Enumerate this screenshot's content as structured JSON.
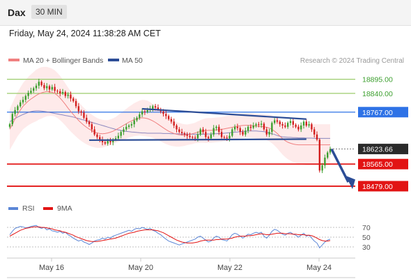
{
  "header": {
    "symbol": "Dax",
    "timeframe": "30 MIN",
    "datetime": "Friday, May 24, 2024 11:38:28 AM CET"
  },
  "legend": {
    "ma20": "MA 20 + Bollinger Bands",
    "ma50": "MA 50",
    "rsi": "RSI",
    "rsi_ma": "9MA"
  },
  "credit": "Research © 2024 Trading Central",
  "colors": {
    "up": "#3a9e2c",
    "down": "#d21d1d",
    "ma20": "#f08080",
    "ma50": "#6e6eb4",
    "band": "#fde3e3",
    "trend": "#2c4d96",
    "support": "#e21414",
    "resistance": "#9ccc6c",
    "pivot": "#2e72e6",
    "current": "#2a2a2a",
    "rsi": "#5b86d6"
  },
  "chart_data": [
    {
      "type": "candlestick",
      "title": "Dax",
      "x_tick_labels": [
        "May 16",
        "May 20",
        "May 22",
        "May 24"
      ],
      "y_range": [
        18430,
        18940
      ],
      "last_price": 18623.66,
      "levels": [
        {
          "value": 18895.0,
          "label": "18895.00",
          "kind": "resistance"
        },
        {
          "value": 18840.0,
          "label": "18840.00",
          "kind": "resistance"
        },
        {
          "value": 18767.0,
          "label": "18767.00",
          "kind": "pivot"
        },
        {
          "value": 18623.66,
          "label": "18623.66",
          "kind": "current"
        },
        {
          "value": 18565.0,
          "label": "18565.00",
          "kind": "support"
        },
        {
          "value": 18479.0,
          "label": "18479.00",
          "kind": "support"
        }
      ],
      "close": [
        18720,
        18760,
        18775,
        18790,
        18805,
        18815,
        18830,
        18842,
        18850,
        18860,
        18870,
        18885,
        18872,
        18860,
        18868,
        18855,
        18865,
        18850,
        18848,
        18840,
        18845,
        18830,
        18835,
        18820,
        18810,
        18790,
        18770,
        18765,
        18745,
        18730,
        18720,
        18700,
        18680,
        18670,
        18660,
        18650,
        18645,
        18655,
        18650,
        18660,
        18665,
        18675,
        18690,
        18700,
        18710,
        18715,
        18720,
        18735,
        18745,
        18758,
        18770,
        18768,
        18775,
        18780,
        18790,
        18785,
        18778,
        18770,
        18760,
        18752,
        18740,
        18730,
        18715,
        18700,
        18690,
        18685,
        18680,
        18675,
        18670,
        18668,
        18665,
        18680,
        18700,
        18690,
        18670,
        18665,
        18680,
        18705,
        18710,
        18690,
        18670,
        18668,
        18665,
        18675,
        18700,
        18710,
        18705,
        18690,
        18680,
        18695,
        18710,
        18706,
        18715,
        18720,
        18718,
        18722,
        18700,
        18680,
        18690,
        18725,
        18735,
        18730,
        18720,
        18715,
        18710,
        18725,
        18732,
        18718,
        18710,
        18700,
        18715,
        18730,
        18715,
        18720,
        18700,
        18680,
        18660,
        18540,
        18560,
        18590,
        18610,
        18623.66
      ],
      "ma20": [
        18700,
        18720,
        18740,
        18760,
        18775,
        18790,
        18800,
        18810,
        18818,
        18825,
        18832,
        18838,
        18842,
        18845,
        18847,
        18846,
        18844,
        18840,
        18832,
        18822,
        18810,
        18797,
        18783,
        18770,
        18758,
        18746,
        18735,
        18725,
        18716,
        18708,
        18701,
        18695,
        18690,
        18686,
        18684,
        18683,
        18684,
        18686,
        18689,
        18693,
        18698,
        18704,
        18710,
        18716,
        18722,
        18728,
        18733,
        18738,
        18741,
        18744,
        18745,
        18744,
        18742,
        18738,
        18733,
        18727,
        18720,
        18713,
        18706,
        18699,
        18693,
        18688,
        18684,
        18681,
        18679,
        18678,
        18678,
        18679,
        18681,
        18683,
        18686,
        18689,
        18692,
        18694,
        18695,
        18696,
        18696,
        18697,
        18698,
        18699,
        18700,
        18702,
        18704,
        18706,
        18708,
        18710,
        18712,
        18714,
        18715,
        18716,
        18716,
        18715,
        18714,
        18713,
        18712,
        18711,
        18710,
        18708,
        18705,
        18700,
        18693,
        18684,
        18674,
        18664,
        18656,
        18650,
        18646,
        18643,
        18641,
        18640,
        18640,
        18640,
        18640,
        18640,
        18640,
        18640,
        18640,
        18640,
        18640,
        18640,
        18640,
        18640
      ],
      "ma50": [
        18730,
        18736,
        18742,
        18748,
        18753,
        18758,
        18762,
        18766,
        18769,
        18771,
        18772,
        18772,
        18771,
        18770,
        18768,
        18766,
        18764,
        18762,
        18760,
        18758,
        18756,
        18754,
        18752,
        18750,
        18748,
        18745,
        18742,
        18739,
        18736,
        18733,
        18730,
        18727,
        18724,
        18721,
        18718,
        18715,
        18712,
        18709,
        18706,
        18703,
        18700,
        18698,
        18696,
        18694,
        18692,
        18691,
        18690,
        18689,
        18688,
        18687,
        18686,
        18686,
        18685,
        18685,
        18685,
        18685,
        18685,
        18685,
        18684,
        18684,
        18684,
        18683,
        18683,
        18683,
        18682,
        18682,
        18682,
        18682,
        18681,
        18681,
        18681,
        18681,
        18681,
        18681,
        18682,
        18682,
        18682,
        18683,
        18683,
        18684,
        18684,
        18685,
        18686,
        18687,
        18688,
        18689,
        18690,
        18691,
        18692,
        18693,
        18694,
        18694,
        18694,
        18694,
        18693,
        18692,
        18691,
        18689,
        18686,
        18683,
        18680,
        18676,
        18673,
        18671,
        18670,
        18669,
        18669,
        18668,
        18668,
        18667,
        18667,
        18667,
        18666,
        18666,
        18666,
        18665,
        18665,
        18665,
        18665,
        18665,
        18665,
        18665
      ],
      "bb_width": [
        80,
        82,
        84,
        86,
        88,
        90,
        92,
        94,
        96,
        98,
        100,
        100,
        100,
        98,
        96,
        94,
        92,
        90,
        88,
        86,
        84,
        82,
        80,
        78,
        76,
        74,
        72,
        70,
        68,
        66,
        64,
        62,
        60,
        58,
        56,
        54,
        52,
        50,
        50,
        50,
        50,
        52,
        54,
        56,
        58,
        60,
        62,
        64,
        66,
        68,
        70,
        70,
        70,
        68,
        66,
        64,
        62,
        60,
        58,
        56,
        54,
        52,
        50,
        48,
        46,
        44,
        42,
        40,
        40,
        40,
        40,
        42,
        44,
        46,
        48,
        48,
        48,
        48,
        48,
        48,
        48,
        48,
        48,
        48,
        48,
        48,
        48,
        48,
        48,
        48,
        48,
        48,
        48,
        48,
        48,
        48,
        48,
        50,
        52,
        54,
        56,
        58,
        60,
        62,
        64,
        66,
        68,
        70,
        72,
        74,
        76,
        78,
        80,
        80,
        80,
        80,
        80,
        80,
        80,
        80,
        80,
        80
      ]
    },
    {
      "type": "line",
      "title": "RSI",
      "y_tick_labels": [
        "70",
        "50",
        "30"
      ],
      "y_range": [
        10,
        90
      ],
      "series": [
        {
          "name": "RSI",
          "values": [
            55,
            62,
            68,
            70,
            72,
            71,
            69,
            70,
            72,
            73,
            74,
            70,
            68,
            70,
            65,
            67,
            63,
            62,
            60,
            62,
            58,
            60,
            55,
            52,
            48,
            45,
            42,
            44,
            40,
            38,
            35,
            38,
            42,
            44,
            45,
            48,
            46,
            50,
            48,
            52,
            54,
            56,
            58,
            60,
            62,
            64,
            62,
            66,
            68,
            67,
            70,
            68,
            66,
            68,
            64,
            62,
            58,
            55,
            50,
            46,
            42,
            40,
            38,
            36,
            34,
            36,
            38,
            40,
            42,
            44,
            46,
            50,
            52,
            48,
            44,
            40,
            42,
            48,
            52,
            50,
            45,
            44,
            42,
            48,
            55,
            58,
            56,
            52,
            48,
            52,
            56,
            55,
            58,
            60,
            58,
            60,
            52,
            48,
            54,
            62,
            66,
            64,
            60,
            56,
            54,
            58,
            60,
            56,
            54,
            50,
            54,
            58,
            52,
            54,
            48,
            42,
            38,
            28,
            34,
            40,
            44,
            46
          ]
        },
        {
          "name": "9MA",
          "values": [
            52,
            55,
            58,
            61,
            64,
            66,
            68,
            69,
            70,
            71,
            71,
            71,
            70,
            70,
            69,
            68,
            67,
            65,
            64,
            63,
            61,
            60,
            58,
            56,
            54,
            51,
            49,
            47,
            45,
            43,
            42,
            41,
            41,
            41,
            42,
            43,
            44,
            45,
            46,
            47,
            48,
            50,
            52,
            54,
            56,
            58,
            59,
            60,
            62,
            63,
            64,
            65,
            65,
            65,
            65,
            64,
            63,
            61,
            59,
            56,
            53,
            50,
            47,
            44,
            42,
            40,
            39,
            38,
            38,
            38,
            39,
            40,
            42,
            43,
            44,
            44,
            44,
            44,
            45,
            45,
            46,
            46,
            46,
            47,
            48,
            50,
            51,
            52,
            52,
            52,
            53,
            53,
            54,
            55,
            56,
            57,
            56,
            55,
            55,
            56,
            57,
            58,
            58,
            58,
            57,
            57,
            57,
            56,
            56,
            55,
            55,
            55,
            54,
            54,
            53,
            51,
            48,
            45,
            43,
            42,
            42,
            43
          ]
        }
      ]
    }
  ]
}
